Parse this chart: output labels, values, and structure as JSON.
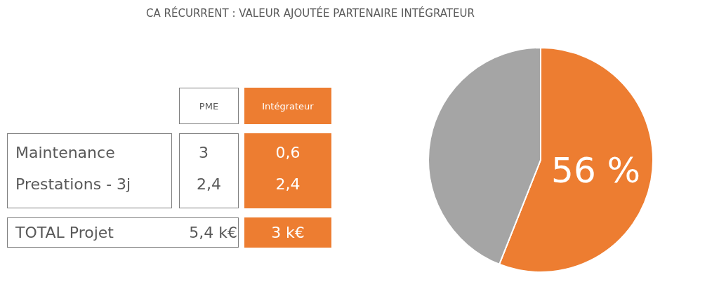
{
  "chart_data": [
    {
      "type": "other",
      "title": "CA RÉCURRENT : VALEUR AJOUTÉE PARTENAIRE INTÉGRATEUR",
      "annotations": [
        "PME",
        "Intégrateur",
        "Maintenance",
        "3",
        "0,6",
        "Prestations - 3j",
        "2,4",
        "2,4",
        "TOTAL Projet",
        "5,4 k€",
        "3 k€"
      ]
    },
    {
      "type": "pie",
      "categories": [
        null,
        null
      ],
      "values": [
        56,
        44
      ],
      "colors": [
        "#ed7d31",
        "#a5a5a5"
      ],
      "value_labels": [
        "56 %",
        null
      ]
    }
  ]
}
